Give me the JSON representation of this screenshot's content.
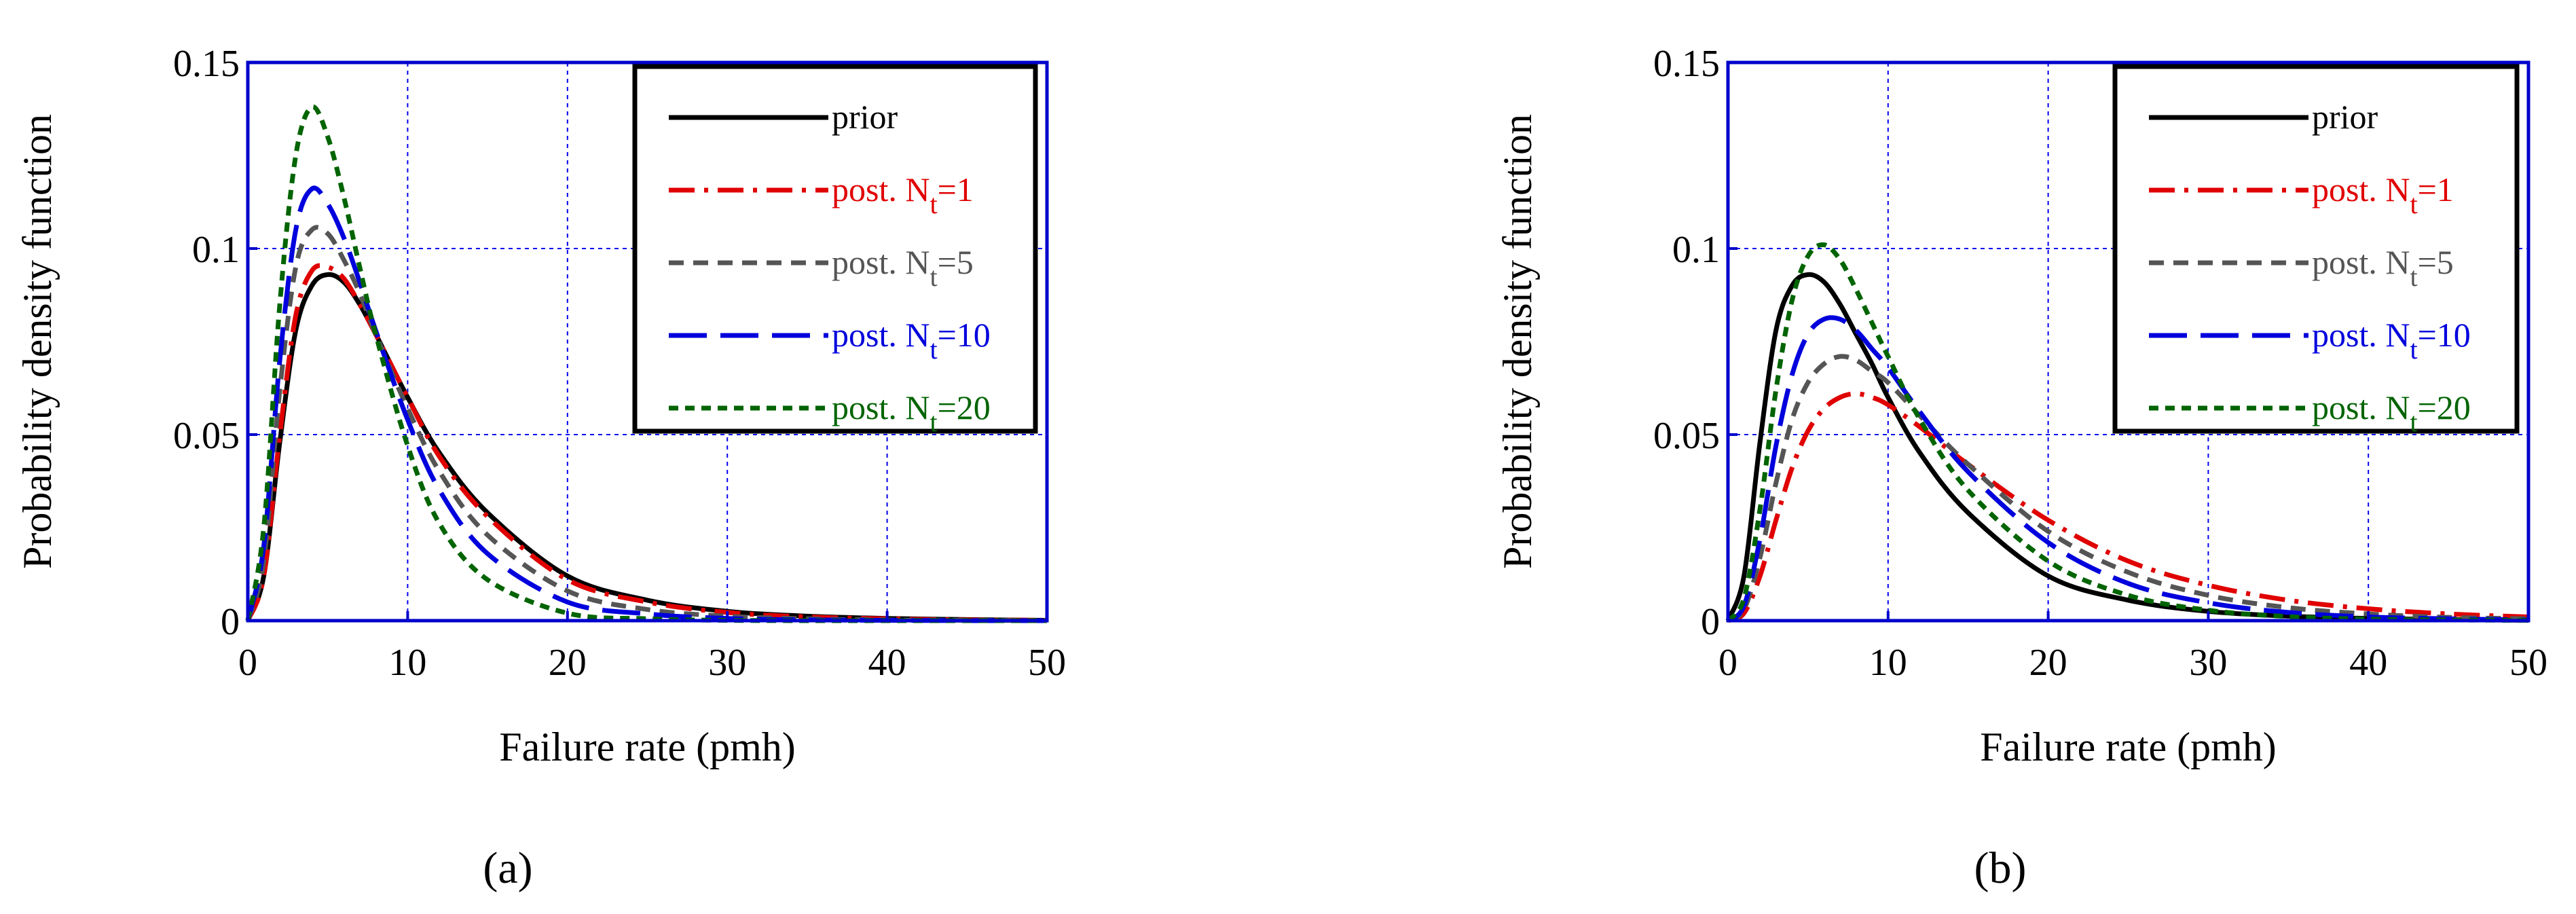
{
  "chart_data": [
    {
      "type": "line",
      "panel_label": "(a)",
      "xlabel": "Failure rate (pmh)",
      "ylabel": "Probability density function",
      "xlim": [
        0,
        50
      ],
      "ylim": [
        0,
        0.15
      ],
      "xticks": [
        "0",
        "10",
        "20",
        "30",
        "40",
        "50"
      ],
      "yticks": [
        "0",
        "0.05",
        "0.1",
        "0.15"
      ],
      "grid": true,
      "legend_position": "top-right",
      "x": [
        0,
        1,
        2,
        3,
        4,
        5,
        6,
        7,
        8,
        10,
        12,
        15,
        20,
        25,
        30,
        35,
        40,
        45,
        50
      ],
      "series": [
        {
          "name": "prior",
          "subscript": "",
          "suffix": "",
          "color": "#000000",
          "dash": "solid",
          "values": [
            0,
            0.012,
            0.048,
            0.078,
            0.09,
            0.093,
            0.091,
            0.085,
            0.077,
            0.06,
            0.045,
            0.029,
            0.012,
            0.0055,
            0.0025,
            0.0012,
            0.0006,
            0.0003,
            0.0001
          ]
        },
        {
          "name": "post. N",
          "subscript": "t",
          "suffix": "=1",
          "color": "#e00000",
          "dash": "dashdot",
          "values": [
            0,
            0.012,
            0.05,
            0.082,
            0.094,
            0.095,
            0.092,
            0.085,
            0.077,
            0.06,
            0.044,
            0.028,
            0.011,
            0.005,
            0.0022,
            0.001,
            0.0005,
            0.0002,
            0.0001
          ]
        },
        {
          "name": "post. N",
          "subscript": "t",
          "suffix": "=5",
          "color": "#555555",
          "dash": "dash",
          "values": [
            0,
            0.016,
            0.062,
            0.095,
            0.105,
            0.104,
            0.097,
            0.088,
            0.077,
            0.057,
            0.04,
            0.023,
            0.008,
            0.003,
            0.0012,
            0.0005,
            0.0002,
            0.0001,
            0
          ]
        },
        {
          "name": "post. N",
          "subscript": "t",
          "suffix": "=10",
          "color": "#0000dd",
          "dash": "longdash",
          "values": [
            0,
            0.02,
            0.07,
            0.105,
            0.116,
            0.112,
            0.103,
            0.091,
            0.078,
            0.054,
            0.035,
            0.018,
            0.005,
            0.0018,
            0.0006,
            0.0002,
            0.0001,
            0,
            0
          ]
        },
        {
          "name": "post. N",
          "subscript": "t",
          "suffix": "=20",
          "color": "#006400",
          "dash": "shortdash",
          "values": [
            0,
            0.025,
            0.085,
            0.125,
            0.138,
            0.13,
            0.114,
            0.095,
            0.077,
            0.047,
            0.026,
            0.011,
            0.002,
            0.0005,
            0.0001,
            0,
            0,
            0,
            0
          ]
        }
      ]
    },
    {
      "type": "line",
      "panel_label": "(b)",
      "xlabel": "Failure rate (pmh)",
      "ylabel": "Probability density function",
      "xlim": [
        0,
        50
      ],
      "ylim": [
        0,
        0.15
      ],
      "xticks": [
        "0",
        "10",
        "20",
        "30",
        "40",
        "50"
      ],
      "yticks": [
        "0",
        "0.05",
        "0.1",
        "0.15"
      ],
      "grid": true,
      "legend_position": "top-right",
      "x": [
        0,
        1,
        2,
        3,
        4,
        5,
        6,
        7,
        8,
        9,
        10,
        12,
        15,
        20,
        25,
        30,
        35,
        40,
        45,
        50
      ],
      "series": [
        {
          "name": "prior",
          "subscript": "",
          "suffix": "",
          "color": "#000000",
          "dash": "solid",
          "values": [
            0,
            0.012,
            0.048,
            0.078,
            0.09,
            0.093,
            0.091,
            0.085,
            0.077,
            0.069,
            0.06,
            0.045,
            0.029,
            0.012,
            0.0055,
            0.0025,
            0.0012,
            0.0006,
            0.0003,
            0.0001
          ]
        },
        {
          "name": "post. N",
          "subscript": "t",
          "suffix": "=1",
          "color": "#e00000",
          "dash": "dashdot",
          "values": [
            0,
            0.002,
            0.012,
            0.027,
            0.041,
            0.051,
            0.057,
            0.06,
            0.061,
            0.06,
            0.058,
            0.052,
            0.042,
            0.027,
            0.016,
            0.0095,
            0.0055,
            0.0032,
            0.0018,
            0.001
          ]
        },
        {
          "name": "post. N",
          "subscript": "t",
          "suffix": "=5",
          "color": "#555555",
          "dash": "dash",
          "values": [
            0,
            0.003,
            0.017,
            0.037,
            0.054,
            0.064,
            0.069,
            0.071,
            0.07,
            0.067,
            0.064,
            0.055,
            0.042,
            0.024,
            0.013,
            0.0068,
            0.0035,
            0.0018,
            0.0009,
            0.0005
          ]
        },
        {
          "name": "post. N",
          "subscript": "t",
          "suffix": "=10",
          "color": "#0000dd",
          "dash": "longdash",
          "values": [
            0,
            0.004,
            0.022,
            0.047,
            0.066,
            0.077,
            0.081,
            0.081,
            0.078,
            0.073,
            0.068,
            0.056,
            0.04,
            0.021,
            0.01,
            0.0048,
            0.0022,
            0.001,
            0.0005,
            0.0002
          ]
        },
        {
          "name": "post. N",
          "subscript": "t",
          "suffix": "=20",
          "color": "#006400",
          "dash": "shortdash",
          "values": [
            0,
            0.006,
            0.03,
            0.062,
            0.086,
            0.098,
            0.101,
            0.097,
            0.089,
            0.08,
            0.071,
            0.054,
            0.035,
            0.016,
            0.0068,
            0.0028,
            0.0011,
            0.0004,
            0.0002,
            0.0001
          ]
        }
      ]
    }
  ]
}
